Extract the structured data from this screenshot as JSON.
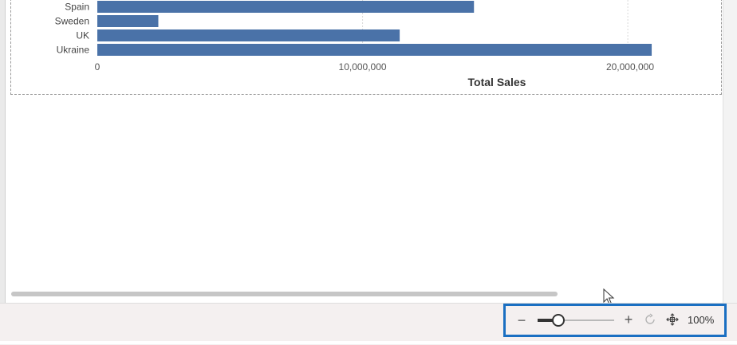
{
  "chart_data": {
    "type": "bar",
    "orientation": "horizontal",
    "categories": [
      "Spain",
      "Sweden",
      "UK",
      "Ukraine"
    ],
    "values": [
      14200000,
      2300000,
      11400000,
      20900000
    ],
    "xlabel": "Total Sales",
    "ylabel": "",
    "xlim": [
      0,
      21500000
    ],
    "x_ticks": [
      {
        "value": 0,
        "label": "0"
      },
      {
        "value": 10000000,
        "label": "10,000,000"
      },
      {
        "value": 20000000,
        "label": "20,000,000"
      }
    ],
    "bar_color": "#4a72a8",
    "gridlines": true,
    "legend": "none"
  },
  "zoom": {
    "minus_label": "−",
    "plus_label": "+",
    "level_label": "100%",
    "level_fraction": 0.27,
    "reset_icon": "reset-zoom-icon",
    "fit_icon": "fit-to-page-icon"
  },
  "scrollbar": {
    "position_fraction": 0.0,
    "visible_fraction": 0.77
  },
  "colors": {
    "highlight_border": "#1a6fc2",
    "bar": "#4a72a8",
    "status_bar_bg": "#f4f0f0"
  }
}
